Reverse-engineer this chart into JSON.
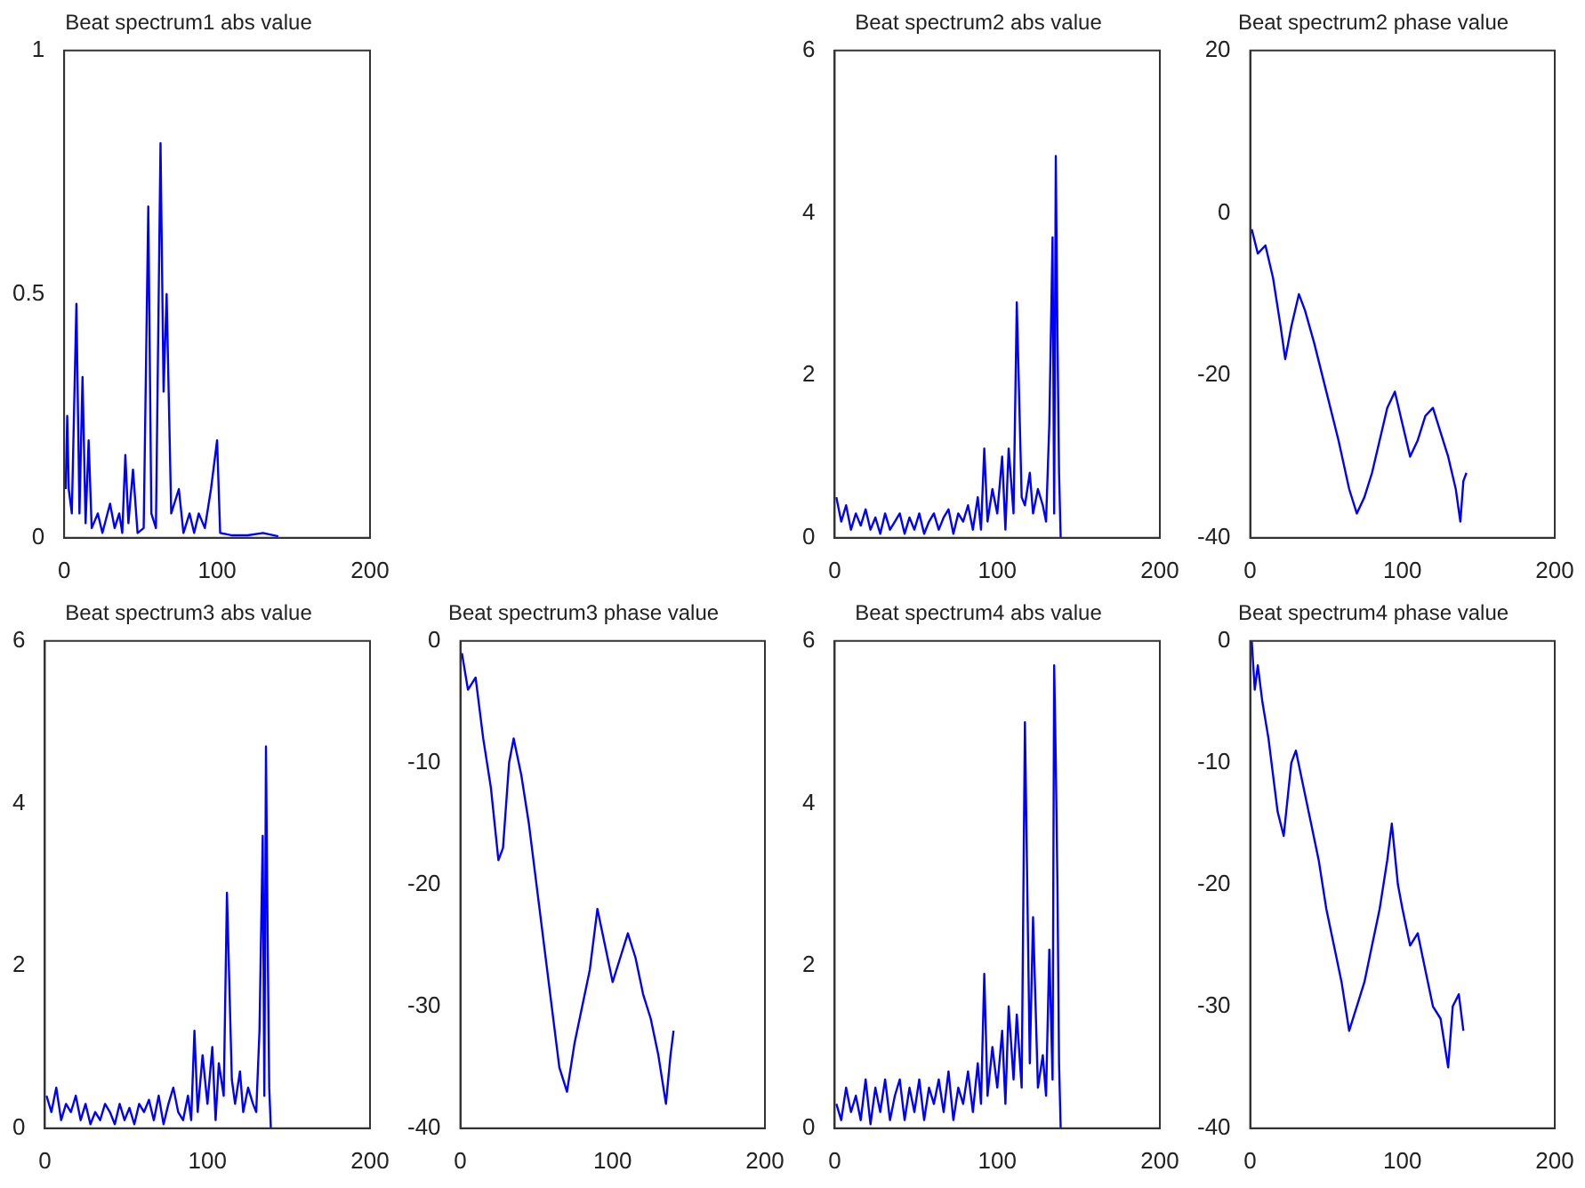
{
  "chart_data": [
    {
      "type": "line",
      "title": "Beat spectrum1 abs value",
      "color": "#0000ff",
      "xlim": [
        0,
        200
      ],
      "xticks": [
        0,
        100,
        200
      ],
      "ylim": [
        0,
        1
      ],
      "yticks": [
        0,
        0.5,
        1
      ],
      "grid": false,
      "x": [
        1,
        2,
        3,
        5,
        8,
        10,
        12,
        14,
        16,
        18,
        22,
        25,
        30,
        33,
        36,
        38,
        40,
        42,
        45,
        48,
        52,
        55,
        57,
        60,
        63,
        65,
        67,
        70,
        75,
        78,
        82,
        85,
        88,
        92,
        96,
        100,
        102,
        110,
        120,
        130,
        140
      ],
      "values": [
        0.1,
        0.25,
        0.1,
        0.05,
        0.48,
        0.05,
        0.33,
        0.03,
        0.2,
        0.02,
        0.05,
        0.01,
        0.07,
        0.02,
        0.05,
        0.01,
        0.17,
        0.03,
        0.14,
        0.01,
        0.02,
        0.68,
        0.05,
        0.02,
        0.81,
        0.3,
        0.5,
        0.05,
        0.1,
        0.01,
        0.05,
        0.01,
        0.05,
        0.02,
        0.1,
        0.2,
        0.01,
        0.005,
        0.005,
        0.01,
        0.003
      ]
    },
    {
      "type": "line",
      "title": "Beat spectrum2 abs value",
      "color": "#0000ff",
      "xlim": [
        0,
        200
      ],
      "xticks": [
        0,
        100,
        200
      ],
      "ylim": [
        0,
        6
      ],
      "yticks": [
        0,
        2,
        4,
        6
      ],
      "grid": false,
      "x": [
        1,
        4,
        7,
        10,
        13,
        16,
        19,
        22,
        25,
        28,
        31,
        34,
        37,
        40,
        43,
        46,
        49,
        52,
        55,
        58,
        61,
        64,
        67,
        70,
        73,
        76,
        79,
        82,
        85,
        88,
        90,
        92,
        94,
        97,
        100,
        103,
        105,
        107,
        110,
        112,
        115,
        117,
        120,
        122,
        125,
        128,
        130,
        132,
        134,
        135,
        136,
        137,
        138,
        139
      ],
      "values": [
        0.5,
        0.2,
        0.4,
        0.1,
        0.3,
        0.15,
        0.35,
        0.1,
        0.25,
        0.05,
        0.3,
        0.1,
        0.2,
        0.3,
        0.05,
        0.25,
        0.1,
        0.3,
        0.05,
        0.2,
        0.3,
        0.1,
        0.25,
        0.35,
        0.05,
        0.3,
        0.2,
        0.4,
        0.1,
        0.5,
        0.1,
        1.1,
        0.2,
        0.6,
        0.3,
        1.0,
        0.1,
        1.1,
        0.3,
        2.9,
        0.5,
        0.4,
        0.8,
        0.3,
        0.6,
        0.4,
        0.2,
        1.4,
        3.7,
        0.3,
        4.7,
        2.5,
        0.8,
        0
      ]
    },
    {
      "type": "line",
      "title": "Beat spectrum2 phase value",
      "color": "#0000ff",
      "xlim": [
        0,
        200
      ],
      "xticks": [
        0,
        100,
        200
      ],
      "ylim": [
        -40,
        20
      ],
      "yticks": [
        -40,
        -20,
        0,
        20
      ],
      "grid": false,
      "x": [
        1,
        5,
        10,
        15,
        20,
        23,
        27,
        32,
        36,
        42,
        50,
        58,
        65,
        70,
        75,
        80,
        85,
        90,
        95,
        100,
        105,
        110,
        115,
        120,
        125,
        130,
        135,
        138,
        140,
        142
      ],
      "values": [
        -2,
        -5,
        -4,
        -8,
        -14,
        -18,
        -14,
        -10,
        -12,
        -16,
        -22,
        -28,
        -34,
        -37,
        -35,
        -32,
        -28,
        -24,
        -22,
        -26,
        -30,
        -28,
        -25,
        -24,
        -27,
        -30,
        -34,
        -38,
        -33,
        -32
      ]
    },
    {
      "type": "line",
      "title": "Beat spectrum3 abs value",
      "color": "#0000ff",
      "xlim": [
        0,
        200
      ],
      "xticks": [
        0,
        100,
        200
      ],
      "ylim": [
        0,
        6
      ],
      "yticks": [
        0,
        2,
        4,
        6
      ],
      "grid": false,
      "x": [
        1,
        4,
        7,
        10,
        13,
        16,
        19,
        22,
        25,
        28,
        31,
        34,
        37,
        40,
        43,
        46,
        49,
        52,
        55,
        58,
        61,
        64,
        67,
        70,
        73,
        76,
        79,
        82,
        85,
        88,
        90,
        92,
        94,
        97,
        100,
        103,
        105,
        107,
        110,
        112,
        115,
        117,
        120,
        122,
        125,
        128,
        130,
        132,
        134,
        135,
        136,
        137,
        138,
        139
      ],
      "values": [
        0.4,
        0.2,
        0.5,
        0.1,
        0.3,
        0.2,
        0.4,
        0.1,
        0.3,
        0.05,
        0.2,
        0.1,
        0.3,
        0.2,
        0.05,
        0.3,
        0.1,
        0.25,
        0.05,
        0.3,
        0.2,
        0.35,
        0.1,
        0.4,
        0.05,
        0.3,
        0.5,
        0.2,
        0.1,
        0.4,
        0.1,
        1.2,
        0.2,
        0.9,
        0.3,
        1.0,
        0.1,
        0.8,
        0.4,
        2.9,
        0.6,
        0.3,
        0.7,
        0.2,
        0.5,
        0.3,
        0.2,
        1.2,
        3.6,
        0.4,
        4.7,
        2.4,
        0.5,
        0
      ]
    },
    {
      "type": "line",
      "title": "Beat spectrum3 phase value",
      "color": "#0000ff",
      "xlim": [
        0,
        200
      ],
      "xticks": [
        0,
        100,
        200
      ],
      "ylim": [
        -40,
        0
      ],
      "yticks": [
        -40,
        -30,
        -20,
        -10,
        0
      ],
      "grid": false,
      "x": [
        1,
        5,
        10,
        15,
        20,
        25,
        28,
        32,
        35,
        40,
        45,
        50,
        55,
        60,
        65,
        70,
        75,
        80,
        85,
        90,
        95,
        100,
        105,
        110,
        115,
        120,
        125,
        130,
        135,
        138,
        140
      ],
      "values": [
        -1,
        -4,
        -3,
        -8,
        -12,
        -18,
        -17,
        -10,
        -8,
        -11,
        -15,
        -20,
        -25,
        -30,
        -35,
        -37,
        -33,
        -30,
        -27,
        -22,
        -25,
        -28,
        -26,
        -24,
        -26,
        -29,
        -31,
        -34,
        -38,
        -34,
        -32
      ]
    },
    {
      "type": "line",
      "title": "Beat spectrum4 abs value",
      "color": "#0000ff",
      "xlim": [
        0,
        200
      ],
      "xticks": [
        0,
        100,
        200
      ],
      "ylim": [
        0,
        6
      ],
      "yticks": [
        0,
        2,
        4,
        6
      ],
      "grid": false,
      "x": [
        1,
        4,
        7,
        10,
        13,
        16,
        19,
        22,
        25,
        28,
        31,
        34,
        37,
        40,
        43,
        46,
        49,
        52,
        55,
        58,
        61,
        64,
        67,
        70,
        73,
        76,
        79,
        82,
        85,
        88,
        90,
        92,
        94,
        97,
        100,
        103,
        105,
        107,
        110,
        112,
        115,
        117,
        120,
        122,
        125,
        128,
        130,
        132,
        134,
        135,
        136,
        137,
        138,
        139
      ],
      "values": [
        0.3,
        0.1,
        0.5,
        0.2,
        0.4,
        0.1,
        0.6,
        0.05,
        0.5,
        0.2,
        0.6,
        0.1,
        0.4,
        0.6,
        0.1,
        0.5,
        0.2,
        0.6,
        0.1,
        0.5,
        0.3,
        0.6,
        0.2,
        0.7,
        0.1,
        0.5,
        0.3,
        0.7,
        0.2,
        0.8,
        0.3,
        1.9,
        0.4,
        1.0,
        0.5,
        1.2,
        0.3,
        1.5,
        0.6,
        1.4,
        0.5,
        5.0,
        0.8,
        2.6,
        0.5,
        0.9,
        0.4,
        2.2,
        0.6,
        5.7,
        4.5,
        3.0,
        0.8,
        0
      ]
    },
    {
      "type": "line",
      "title": "Beat spectrum4 phase value",
      "color": "#0000ff",
      "xlim": [
        0,
        200
      ],
      "xticks": [
        0,
        100,
        200
      ],
      "ylim": [
        -40,
        0
      ],
      "yticks": [
        -40,
        -30,
        -20,
        -10,
        0
      ],
      "grid": false,
      "x": [
        1,
        3,
        5,
        8,
        12,
        18,
        22,
        27,
        30,
        35,
        40,
        45,
        50,
        55,
        60,
        65,
        70,
        75,
        80,
        85,
        90,
        93,
        97,
        100,
        105,
        110,
        115,
        120,
        125,
        130,
        133,
        137,
        140
      ],
      "values": [
        0,
        -4,
        -2,
        -5,
        -8,
        -14,
        -16,
        -10,
        -9,
        -12,
        -15,
        -18,
        -22,
        -25,
        -28,
        -32,
        -30,
        -28,
        -25,
        -22,
        -18,
        -15,
        -20,
        -22,
        -25,
        -24,
        -27,
        -30,
        -31,
        -35,
        -30,
        -29,
        -32
      ]
    }
  ]
}
